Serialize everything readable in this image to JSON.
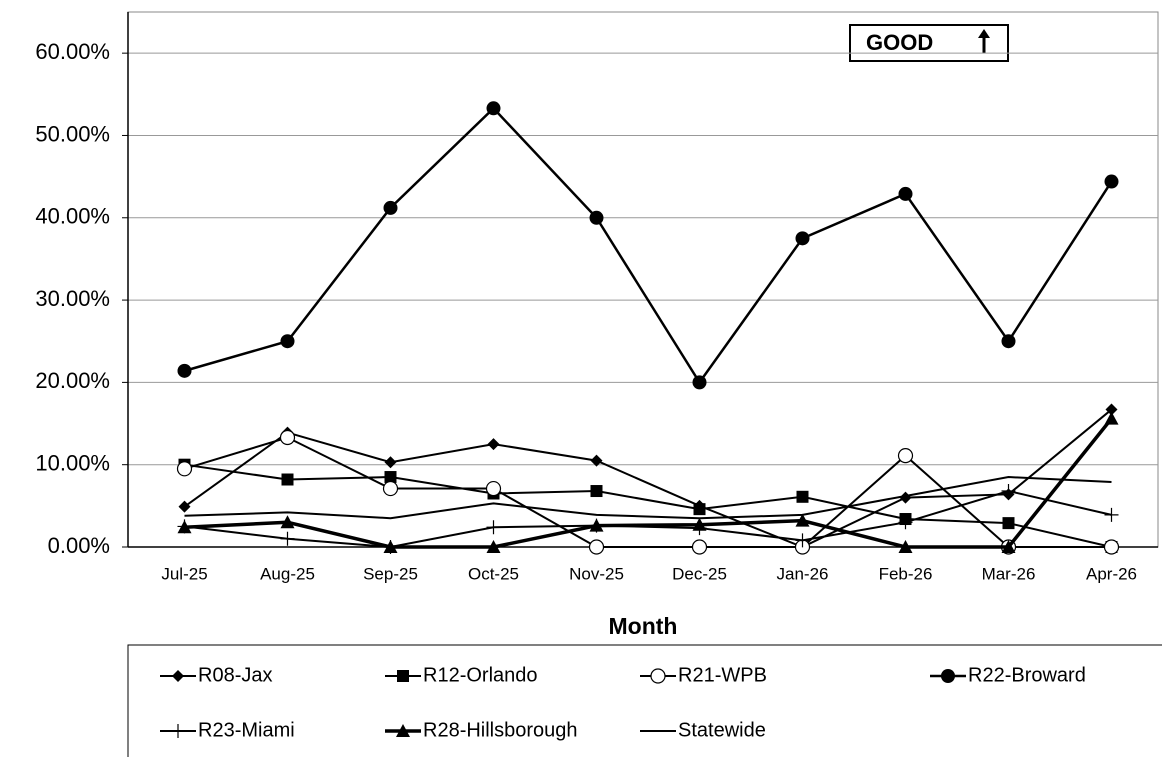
{
  "chart_data": {
    "type": "line",
    "x_label": "Month",
    "annotation": "GOOD",
    "categories": [
      "Jul-25",
      "Aug-25",
      "Sep-25",
      "Oct-25",
      "Nov-25",
      "Dec-25",
      "Jan-26",
      "Feb-26",
      "Mar-26",
      "Apr-26"
    ],
    "series": [
      {
        "name": "R08-Jax",
        "color": "#000000",
        "marker": "diamond",
        "values": [
          4.9,
          13.9,
          10.3,
          12.5,
          10.5,
          5.0,
          0,
          6.0,
          6.4,
          16.7
        ]
      },
      {
        "name": "R12-Orlando",
        "color": "#000000",
        "marker": "square",
        "values": [
          10.0,
          8.2,
          8.5,
          6.5,
          6.8,
          4.6,
          6.1,
          3.4,
          2.9,
          0
        ]
      },
      {
        "name": "R21-WPB",
        "color": "#000000",
        "marker": "open-circle",
        "values": [
          9.5,
          13.3,
          7.1,
          7.1,
          0,
          0,
          0,
          11.1,
          0,
          0
        ]
      },
      {
        "name": "R22-Broward",
        "color": "#000000",
        "marker": "circle",
        "values": [
          21.4,
          25.0,
          41.2,
          53.3,
          40.0,
          20.0,
          37.5,
          42.9,
          25.0,
          44.4
        ]
      },
      {
        "name": "R23-Miami",
        "color": "#000000",
        "marker": "plus",
        "values": [
          2.5,
          1.0,
          0,
          2.4,
          2.6,
          2.3,
          0.8,
          3.0,
          6.8,
          3.9
        ]
      },
      {
        "name": "R28-Hillsborough",
        "color": "#000000",
        "marker": "triangle",
        "values": [
          2.4,
          3.0,
          0,
          0,
          2.6,
          2.7,
          3.2,
          0,
          0,
          15.6
        ]
      },
      {
        "name": "Statewide",
        "color": "#000000",
        "marker": "none",
        "values": [
          3.8,
          4.2,
          3.5,
          5.3,
          3.9,
          3.5,
          3.9,
          6.2,
          8.5,
          7.9
        ]
      }
    ],
    "ylim": [
      0,
      65
    ],
    "yticks": [
      {
        "value": 0,
        "label": "0.00%"
      },
      {
        "value": 10,
        "label": "10.00%"
      },
      {
        "value": 20,
        "label": "20.00%"
      },
      {
        "value": 30,
        "label": "30.00%"
      },
      {
        "value": 40,
        "label": "40.00%"
      },
      {
        "value": 50,
        "label": "50.00%"
      },
      {
        "value": 60,
        "label": "60.00%"
      }
    ],
    "grid": true,
    "legend": "bottom"
  }
}
